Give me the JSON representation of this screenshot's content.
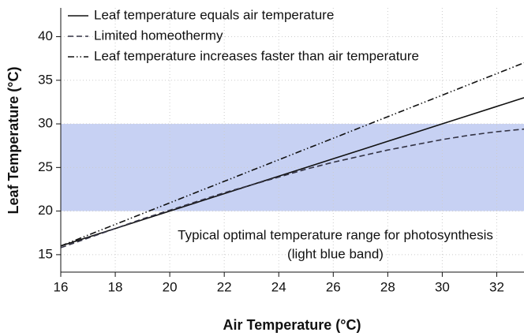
{
  "chart_data": {
    "type": "line",
    "xlabel": "Air Temperature (°C)",
    "ylabel": "Leaf Temperature (°C)",
    "x": [
      16,
      17,
      18,
      19,
      20,
      21,
      22,
      23,
      24,
      25,
      26,
      27,
      28,
      29,
      30,
      31,
      32,
      33
    ],
    "series": [
      {
        "name": "Leaf temperature equals air temperature",
        "color": "#111111",
        "style": "solid",
        "values": [
          16,
          17,
          18,
          19,
          20,
          21,
          22,
          23,
          24,
          25,
          26,
          27,
          28,
          29,
          30,
          31,
          32,
          33
        ]
      },
      {
        "name": "Limited homeothermy",
        "color": "#333344",
        "style": "dashed",
        "values": [
          15.8,
          16.9,
          18.0,
          19.1,
          20.1,
          21.1,
          22.1,
          23.0,
          23.9,
          24.8,
          25.6,
          26.3,
          27.0,
          27.6,
          28.2,
          28.7,
          29.1,
          29.4
        ]
      },
      {
        "name": "Leaf temperature increases faster than air temperature",
        "color": "#111111",
        "style": "dashdot",
        "values": [
          16,
          17.24,
          18.47,
          19.71,
          20.94,
          22.18,
          23.41,
          24.65,
          25.88,
          27.12,
          28.35,
          29.59,
          30.82,
          32.06,
          33.29,
          34.53,
          35.76,
          37
        ]
      }
    ],
    "band": {
      "y_range": [
        20,
        30
      ],
      "color": "#c7d1f3"
    },
    "annotation": [
      "Typical optimal temperature range for photosynthesis",
      "(light blue band)"
    ],
    "xlim": [
      16,
      33
    ],
    "xticks": [
      16,
      18,
      20,
      22,
      24,
      26,
      28,
      30,
      32
    ],
    "ylim": [
      13,
      43.3
    ],
    "yticks": [
      15,
      20,
      25,
      30,
      35,
      40
    ],
    "grid": true,
    "legend": "upper left"
  }
}
